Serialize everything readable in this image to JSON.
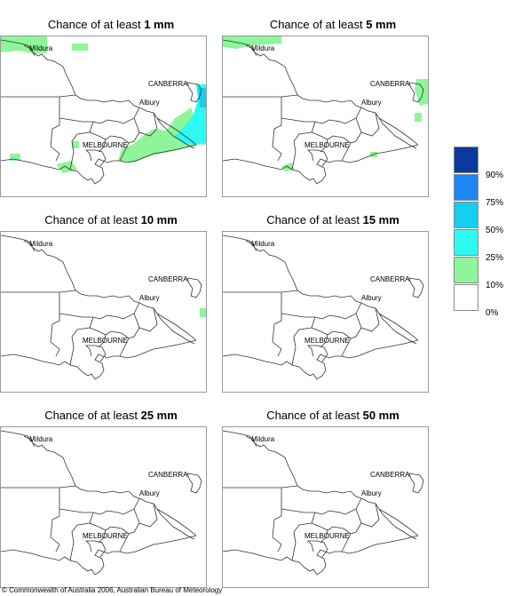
{
  "colors": {
    "band_10_25": "#8ef59a",
    "band_25_50": "#2ef8f2",
    "band_50_75": "#16cdf2",
    "band_75_90": "#1c86f5",
    "band_90_100": "#0a3a9e",
    "band_0_10": "#ffffff"
  },
  "panels": [
    {
      "prefix": "Chance of at least ",
      "amount": "1 mm"
    },
    {
      "prefix": "Chance of at least ",
      "amount": "5 mm"
    },
    {
      "prefix": "Chance of at least ",
      "amount": "10 mm"
    },
    {
      "prefix": "Chance of at least ",
      "amount": "15 mm"
    },
    {
      "prefix": "Chance of at least ",
      "amount": "25 mm"
    },
    {
      "prefix": "Chance of at least ",
      "amount": "50 mm"
    }
  ],
  "cities": {
    "mildura": "Mildura",
    "canberra": "CANBERRA",
    "albury": "Albury",
    "melbourne": "MELBOURNE"
  },
  "legend": {
    "labels": [
      "90%",
      "75%",
      "50%",
      "25%",
      "10%",
      "0%"
    ]
  },
  "footer": {
    "copyright": "© Commonwealth of Australia 2006, Australian Bureau of Meteorology"
  }
}
